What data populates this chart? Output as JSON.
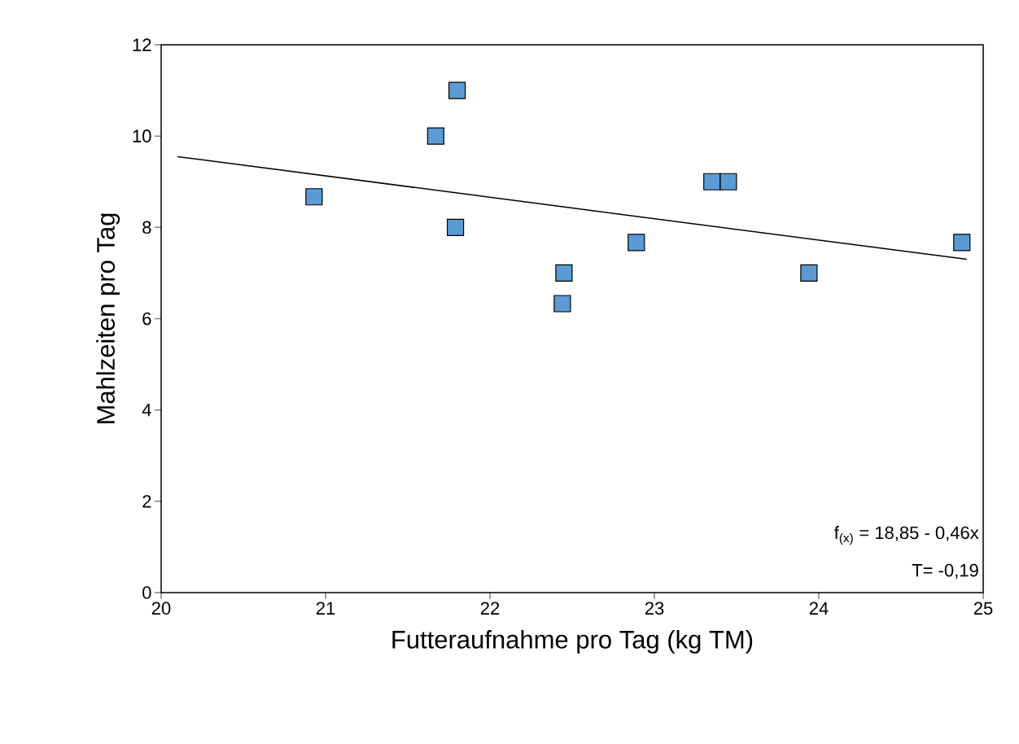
{
  "chart_data": {
    "type": "scatter",
    "xlabel": "Futteraufnahme pro Tag (kg TM)",
    "ylabel": "Mahlzeiten pro Tag",
    "xlim": [
      20,
      25
    ],
    "ylim": [
      0,
      12
    ],
    "xticks": [
      20,
      21,
      22,
      23,
      24,
      25
    ],
    "yticks": [
      0,
      2,
      4,
      6,
      8,
      10,
      12
    ],
    "series": [
      {
        "marker": "square",
        "color": "#5b9bd5",
        "x": [
          20.93,
          21.67,
          21.8,
          21.79,
          22.45,
          22.44,
          22.89,
          23.35,
          23.45,
          23.94,
          24.87
        ],
        "values": [
          8.67,
          10,
          11,
          8,
          7,
          6.33,
          7.67,
          9,
          9,
          7,
          7.67
        ]
      },
      {
        "type": "line",
        "marker": "none",
        "color": "#000000",
        "x": [
          20.1,
          24.9
        ],
        "values": [
          9.55,
          7.3
        ]
      }
    ],
    "annotations": [
      "f$_{(x)}$ = 18,85 - 0,46x",
      "T= -0,19"
    ]
  }
}
